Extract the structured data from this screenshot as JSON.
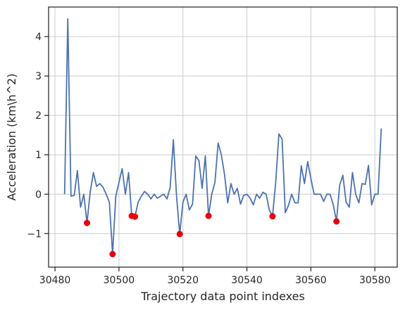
{
  "chart_data": {
    "type": "line",
    "title": "",
    "xlabel": "Trajectory data point indexes",
    "ylabel": "Acceleration (km\\h^2)",
    "xlim": [
      30478,
      30587
    ],
    "ylim": [
      -1.85,
      4.75
    ],
    "xticks": [
      30480,
      30500,
      30520,
      30540,
      30560,
      30580
    ],
    "yticks": [
      -1,
      0,
      1,
      2,
      3,
      4
    ],
    "grid": true,
    "colors": {
      "line": "#4c72b0",
      "marker": "#e8000b",
      "grid": "#cccccc",
      "axes": "#262626"
    },
    "series": [
      {
        "x": [
          30483,
          30484,
          30485,
          30486,
          30487,
          30488,
          30489,
          30490,
          30491,
          30492,
          30493,
          30494,
          30495,
          30496,
          30497,
          30498,
          30499,
          30500,
          30501,
          30502,
          30503,
          30504,
          30505,
          30506,
          30507,
          30508,
          30509,
          30510,
          30511,
          30512,
          30513,
          30514,
          30515,
          30516,
          30517,
          30518,
          30519,
          30520,
          30521,
          30522,
          30523,
          30524,
          30525,
          30526,
          30527,
          30528,
          30529,
          30530,
          30531,
          30532,
          30533,
          30534,
          30535,
          30536,
          30537,
          30538,
          30539,
          30540,
          30541,
          30542,
          30543,
          30544,
          30545,
          30546,
          30547,
          30548,
          30549,
          30550,
          30551,
          30552,
          30553,
          30554,
          30555,
          30556,
          30557,
          30558,
          30559,
          30560,
          30561,
          30562,
          30563,
          30564,
          30565,
          30566,
          30567,
          30568,
          30569,
          30570,
          30571,
          30572,
          30573,
          30574,
          30575,
          30576,
          30577,
          30578,
          30579,
          30580,
          30581,
          30582
        ],
        "y": [
          0.0,
          4.45,
          -0.05,
          -0.03,
          0.6,
          -0.33,
          0.0,
          -0.73,
          0.05,
          0.55,
          0.2,
          0.27,
          0.18,
          0.0,
          -0.2,
          -1.52,
          -0.05,
          0.3,
          0.65,
          0.0,
          0.55,
          -0.55,
          -0.57,
          -0.2,
          -0.05,
          0.07,
          0.0,
          -0.12,
          0.0,
          -0.1,
          -0.05,
          0.0,
          -0.12,
          0.17,
          1.38,
          -0.05,
          -1.01,
          -0.2,
          0.0,
          -0.4,
          -0.25,
          0.97,
          0.85,
          0.15,
          0.97,
          -0.55,
          0.0,
          0.3,
          1.3,
          1.0,
          0.5,
          -0.22,
          0.27,
          0.0,
          0.15,
          -0.25,
          -0.03,
          0.0,
          -0.1,
          -0.27,
          0.0,
          -0.1,
          0.05,
          0.0,
          -0.4,
          -0.56,
          0.3,
          1.53,
          1.4,
          -0.47,
          -0.28,
          0.0,
          -0.22,
          -0.22,
          0.72,
          0.27,
          0.83,
          0.4,
          0.0,
          0.0,
          0.0,
          -0.18,
          0.0,
          0.0,
          -0.27,
          -0.69,
          0.23,
          0.48,
          -0.2,
          -0.33,
          0.55,
          0.0,
          -0.22,
          0.27,
          0.25,
          0.73,
          -0.27,
          0.0,
          0.0,
          1.67
        ]
      }
    ],
    "markers": {
      "x": [
        30490,
        30498,
        30504,
        30505,
        30519,
        30528,
        30548,
        30568
      ],
      "y": [
        -0.73,
        -1.52,
        -0.55,
        -0.57,
        -1.01,
        -0.55,
        -0.56,
        -0.69
      ]
    }
  }
}
